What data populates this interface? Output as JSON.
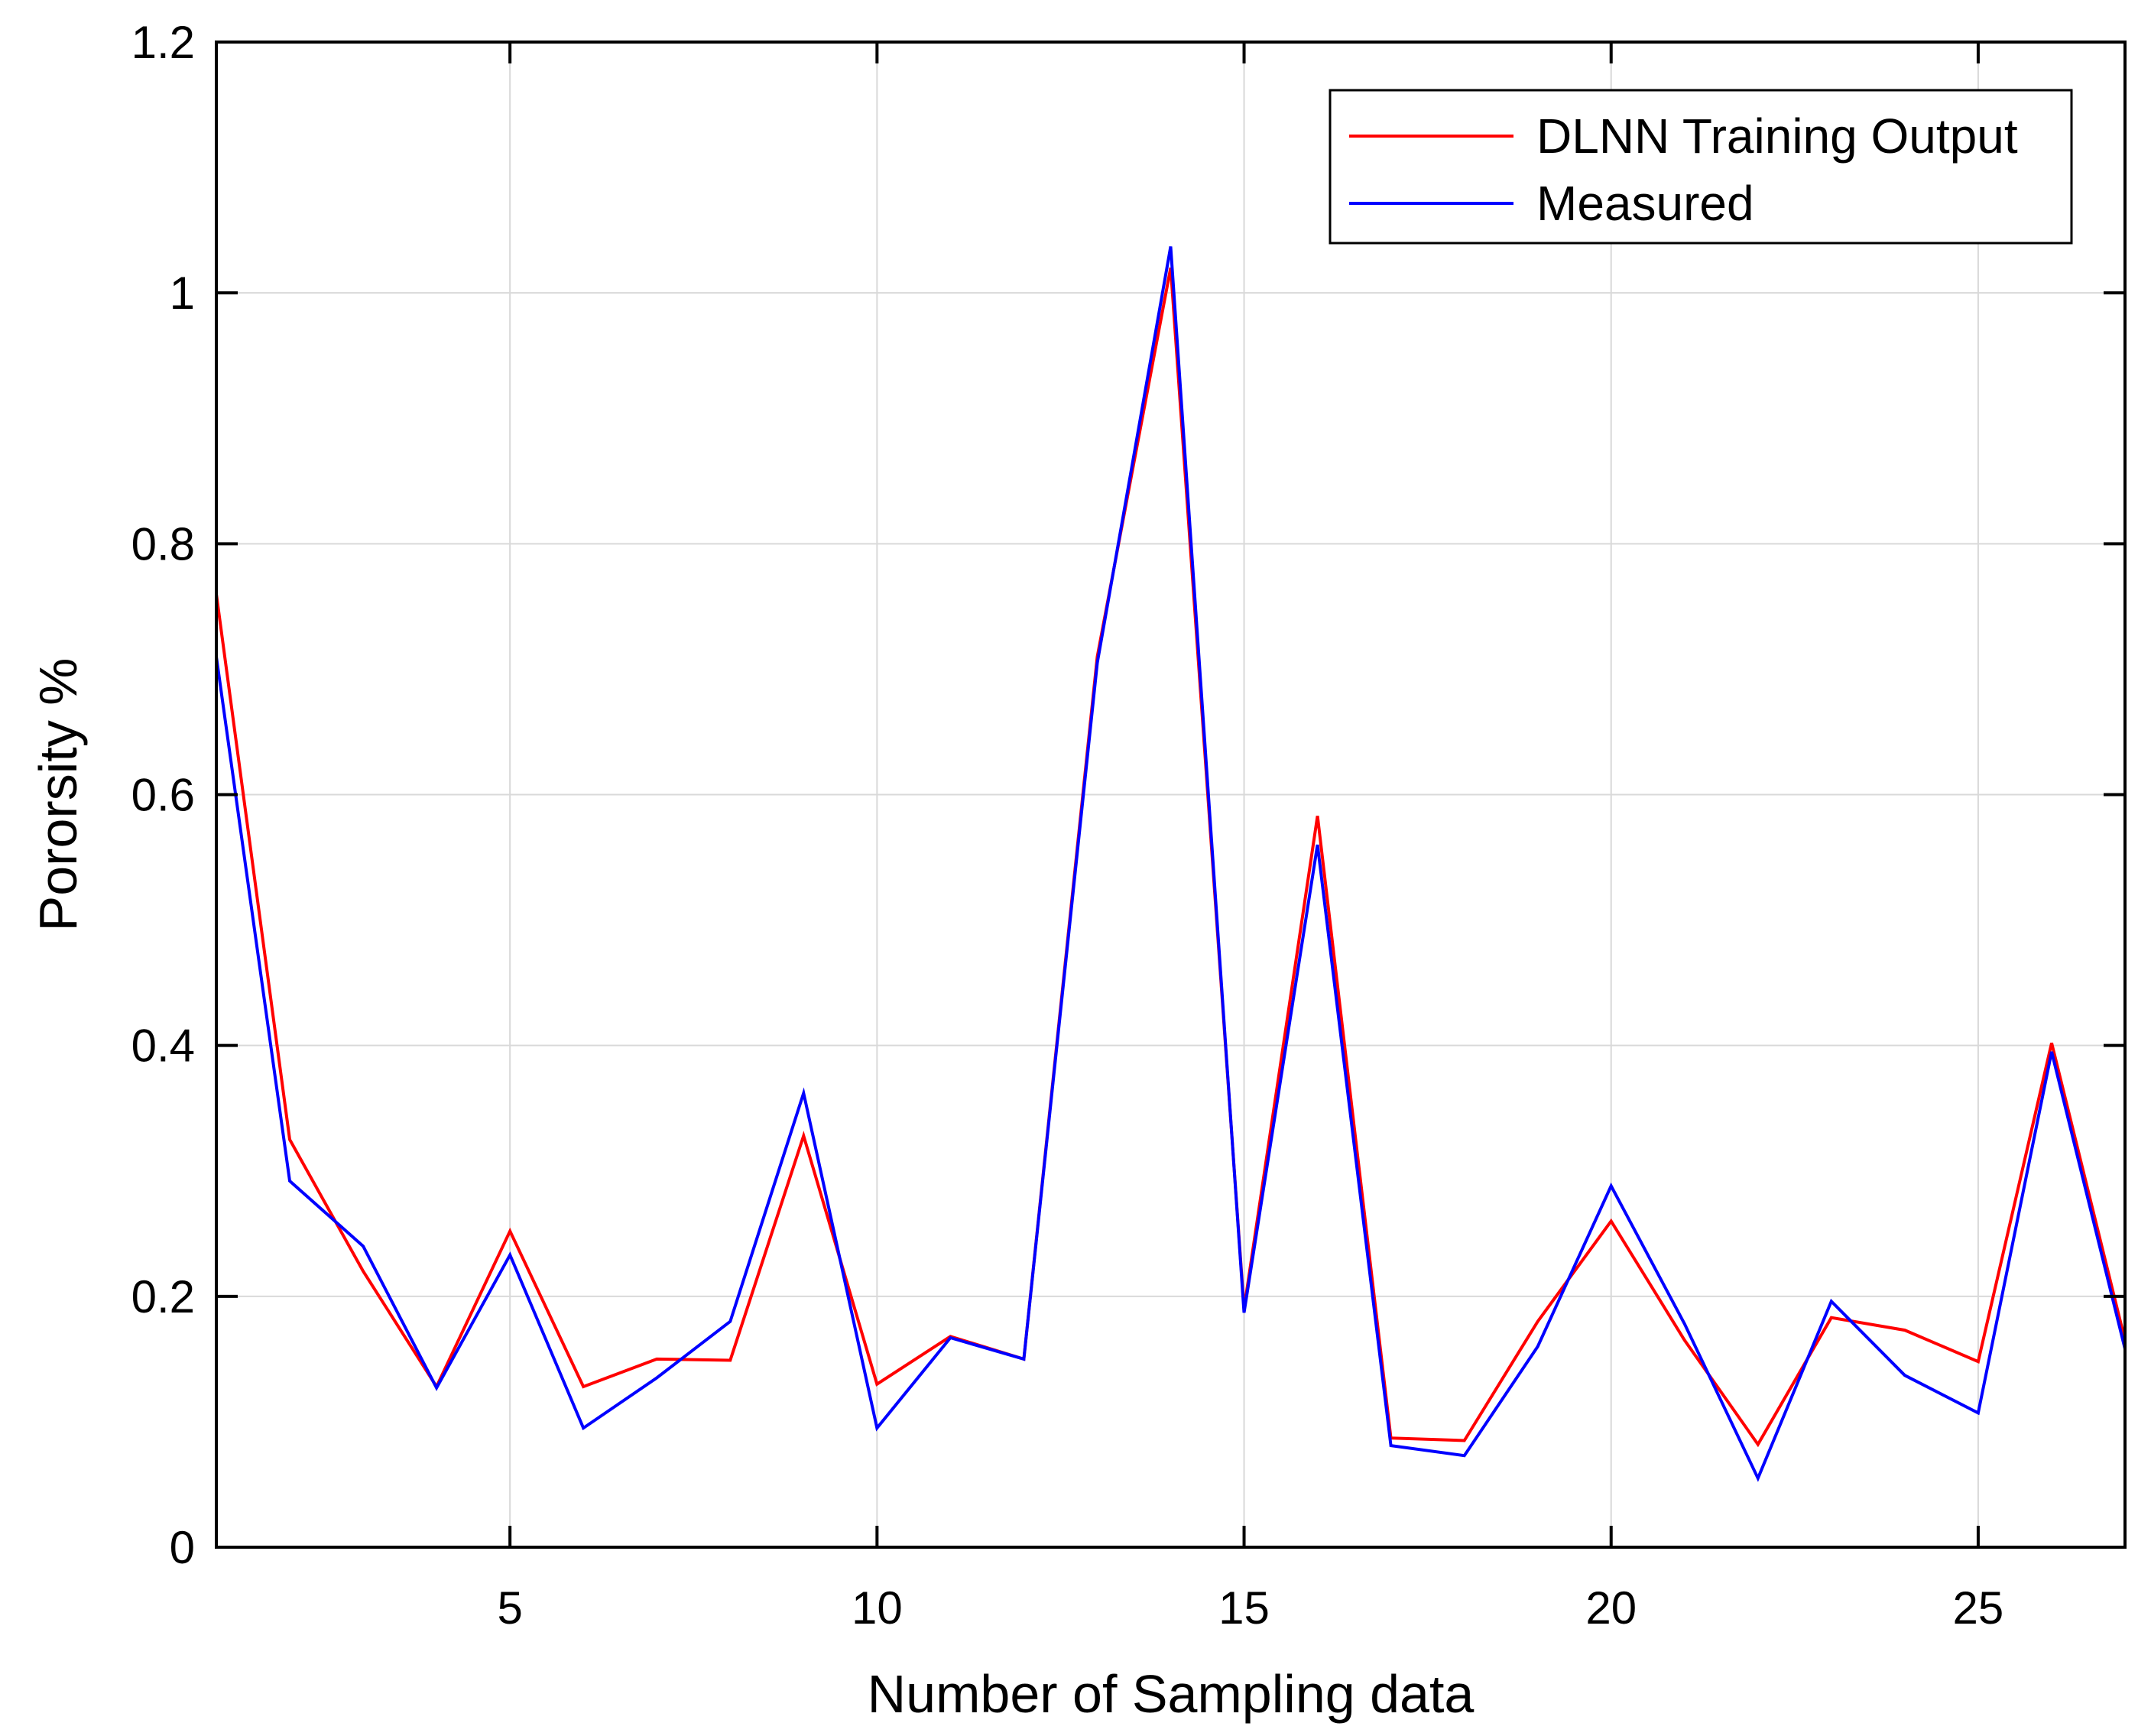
{
  "chart_data": {
    "type": "line",
    "title": "",
    "xlabel": "Number of Sampling data",
    "ylabel": "Pororsity %",
    "xlim": [
      1,
      27
    ],
    "ylim": [
      0,
      1.2
    ],
    "xticks": [
      5,
      10,
      15,
      20,
      25
    ],
    "xtick_labels": [
      "5",
      "10",
      "15",
      "20",
      "25"
    ],
    "yticks": [
      0,
      0.2,
      0.4,
      0.6,
      0.8,
      1.0,
      1.2
    ],
    "ytick_labels": [
      "0",
      "0.2",
      "0.4",
      "0.6",
      "0.8",
      "1",
      "1.2"
    ],
    "grid": true,
    "legend_position": "top-right",
    "x": [
      1,
      2,
      3,
      4,
      5,
      6,
      7,
      8,
      9,
      10,
      11,
      12,
      13,
      14,
      15,
      16,
      17,
      18,
      19,
      20,
      21,
      22,
      23,
      24,
      25,
      26,
      27
    ],
    "series": [
      {
        "name": "DLNN Training Output",
        "color": "#ff0000",
        "values": [
          0.76,
          0.325,
          0.22,
          0.128,
          0.252,
          0.128,
          0.15,
          0.149,
          0.328,
          0.13,
          0.168,
          0.15,
          0.71,
          1.02,
          0.19,
          0.583,
          0.087,
          0.085,
          0.18,
          0.26,
          0.165,
          0.082,
          0.183,
          0.173,
          0.148,
          0.402,
          0.165
        ]
      },
      {
        "name": "Measured",
        "color": "#0000ff",
        "values": [
          0.71,
          0.292,
          0.24,
          0.127,
          0.233,
          0.095,
          0.135,
          0.18,
          0.362,
          0.095,
          0.167,
          0.15,
          0.705,
          1.037,
          0.187,
          0.56,
          0.081,
          0.073,
          0.16,
          0.288,
          0.178,
          0.055,
          0.196,
          0.137,
          0.107,
          0.395,
          0.158
        ]
      }
    ]
  }
}
